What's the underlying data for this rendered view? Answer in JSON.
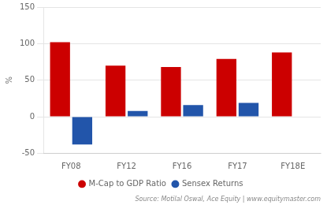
{
  "chart_data": {
    "type": "bar",
    "categories": [
      "FY08",
      "FY12",
      "FY16",
      "FY17",
      "FY18E"
    ],
    "series": [
      {
        "name": "M-Cap to GDP Ratio",
        "color": "#cc0000",
        "values": [
          102,
          70,
          68,
          79,
          88
        ]
      },
      {
        "name": "Sensex Returns",
        "color": "#2255aa",
        "values": [
          -38,
          8,
          16,
          19,
          0
        ]
      }
    ],
    "ylabel": "%",
    "ylim": [
      -50,
      150
    ],
    "yticks": [
      -50,
      0,
      50,
      100,
      150
    ],
    "grid": true,
    "legend": "bottom",
    "annotations": [
      "Source: Motilal Oswal, Ace Equity | www.equitymaster.com"
    ]
  }
}
